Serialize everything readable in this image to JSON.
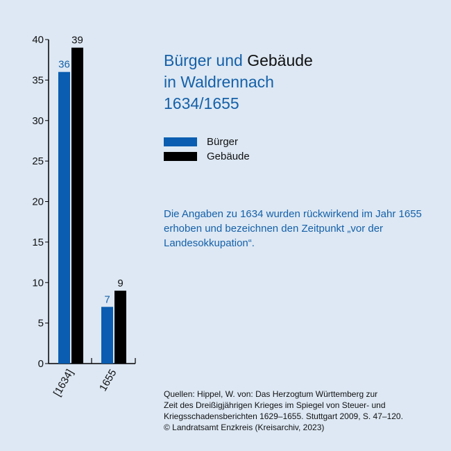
{
  "title": {
    "part1": "Bürger und ",
    "part2": "Gebäude",
    "line2": "in Waldrennach",
    "line3": "1634/1655"
  },
  "legend": [
    {
      "label": "Bürger",
      "color": "#0a5db0"
    },
    {
      "label": "Gebäude",
      "color": "#000000"
    }
  ],
  "note": "Die Angaben zu 1634 wurden rückwirkend im Jahr 1655 erhoben und bezeichnen den Zeitpunkt „vor der Landesokkupation“.",
  "source": {
    "lines": [
      "Quellen: Hippel, W. von: Das Herzogtum Württemberg zur",
      "Zeit des Dreißigjährigen Krieges im Spiegel von Steuer- und",
      "Kriegsschadensberichten 1629–1655. Stuttgart 2009, S. 47–120.",
      "© Landratsamt Enzkreis (Kreisarchiv, 2023)"
    ]
  },
  "colors": {
    "background": "#dde8f4",
    "accent_blue": "#1560a8",
    "bar_blue": "#0a5db0",
    "bar_black": "#000000"
  },
  "chart_data": {
    "type": "bar",
    "categories": [
      "[1634]",
      "1655"
    ],
    "series": [
      {
        "name": "Bürger",
        "values": [
          36,
          7
        ],
        "color": "#0a5db0",
        "label_color": "#1560a8"
      },
      {
        "name": "Gebäude",
        "values": [
          39,
          9
        ],
        "color": "#000000",
        "label_color": "#111111"
      }
    ],
    "yticks": [
      0,
      5,
      10,
      15,
      20,
      25,
      30,
      35,
      40
    ],
    "ylim": [
      0,
      40
    ],
    "grid": false,
    "legend_position": "right"
  }
}
